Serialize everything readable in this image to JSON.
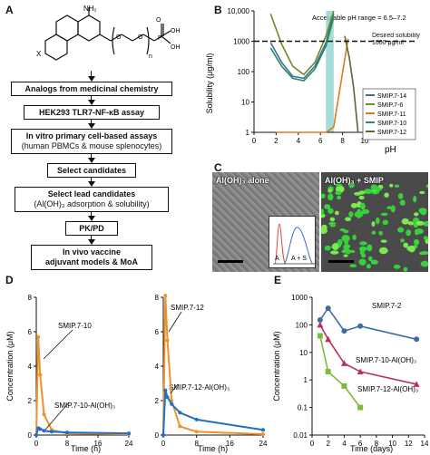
{
  "panels": {
    "A": {
      "letter": "A",
      "structure": {
        "sub_nh2": "NH₂",
        "sub_x": "X",
        "sub_n": "n",
        "sub_p": "P",
        "sub_oh1": "OH",
        "sub_oh2": "OH",
        "sub_o1": "O",
        "sub_o2": "O",
        "sub_o3": "O"
      },
      "steps": [
        {
          "line1": "Analogs from medicinal chemistry",
          "line2": ""
        },
        {
          "line1": "HEK293 TLR7-NF-κB assay",
          "line2": ""
        },
        {
          "line1": "In vitro primary cell-based assays",
          "line2": "(human PBMCs & mouse splenocytes)"
        },
        {
          "line1": "Select candidates",
          "line2": ""
        },
        {
          "line1": "Select lead candidates",
          "line2": "(Al(OH)₃ adsorption & solubility)"
        },
        {
          "line1": "PK/PD",
          "line2": ""
        },
        {
          "line1": "In vivo vaccine",
          "line2": "adjuvant models & MoA"
        }
      ]
    },
    "B": {
      "letter": "B",
      "ylabel": "Solubility (μg/ml)",
      "xlabel": "pH",
      "annotation": "Acceptable pH range = 6.5–7.2",
      "desired_label": "Desired solubility 1000 μg/ml",
      "yticks": [
        "10,000",
        "1000",
        "100",
        "10",
        "1"
      ],
      "xticks": [
        "0",
        "2",
        "4",
        "6",
        "8",
        "10"
      ],
      "legend": [
        {
          "label": "SMIP.7-14",
          "color": "#3a6ea5"
        },
        {
          "label": "SMIP.7-6",
          "color": "#6b8e23"
        },
        {
          "label": "SMIP.7-11",
          "color": "#e07b1a"
        },
        {
          "label": "SMIP.7-10",
          "color": "#2e8b57"
        },
        {
          "label": "SMIP.7-12",
          "color": "#556b2f"
        }
      ]
    },
    "C": {
      "letter": "C",
      "left_label": "Al(OH)₃ alone",
      "right_label": "Al(OH)₃ + SMIP",
      "inset_a": "A",
      "inset_as": "A + S"
    },
    "D": {
      "letter": "D",
      "ylabel": "Concentration (μM)",
      "xlabel": "Time (h)",
      "left": {
        "yticks": [
          "8",
          "6",
          "4",
          "2",
          "0"
        ],
        "xticks": [
          "0",
          "8",
          "16",
          "24"
        ],
        "label_free": "SMIP.7-10",
        "label_adsorbed": "SMIP.7-10-Al(OH)₃"
      },
      "right": {
        "yticks": [
          "8",
          "6",
          "4",
          "2",
          "0"
        ],
        "xticks": [
          "0",
          "8",
          "16",
          "24"
        ],
        "label_free": "SMIP.7-12",
        "label_adsorbed": "SMIP.7-12-Al(OH)₃"
      }
    },
    "E": {
      "letter": "E",
      "ylabel": "Concentration (μM)",
      "xlabel": "Time (days)",
      "yticks": [
        "1000",
        "100",
        "10",
        "1",
        "0.1",
        "0.01"
      ],
      "xticks": [
        "0",
        "2",
        "4",
        "6",
        "8",
        "10",
        "12",
        "14"
      ],
      "labels": [
        "SMIP.7-2",
        "SMIP.7-10-Al(OH)₃",
        "SMIP.7-12-Al(OH)₃"
      ]
    }
  },
  "chart_data": [
    {
      "type": "line",
      "panel": "B",
      "xlabel": "pH",
      "ylabel": "Solubility (μg/ml)",
      "xlim": [
        0,
        10
      ],
      "ylim": [
        1,
        10000
      ],
      "yscale": "log",
      "reference_line": 1000,
      "highlight_range": [
        6.5,
        7.2
      ],
      "series": [
        {
          "name": "SMIP.7-14",
          "color": "#3a6ea5",
          "x": [
            1.5,
            2.5,
            3.5,
            4.5,
            5.5,
            6.5,
            7.2
          ],
          "y": [
            900,
            200,
            70,
            60,
            150,
            900,
            8000
          ]
        },
        {
          "name": "SMIP.7-6",
          "color": "#6b8e23",
          "x": [
            1.5,
            2.5,
            3.5,
            4.5,
            5.5,
            6.5,
            7.2
          ],
          "y": [
            8000,
            800,
            150,
            80,
            200,
            1500,
            10000
          ]
        },
        {
          "name": "SMIP.7-11",
          "color": "#e07b1a",
          "x": [
            2.0,
            3.0,
            4.0,
            5.0,
            6.0,
            6.5,
            7.2,
            8.5
          ],
          "y": [
            1,
            1,
            1,
            1,
            1,
            1,
            1.5,
            1200
          ]
        },
        {
          "name": "SMIP.7-10",
          "color": "#2e8b57",
          "x": [
            1.5,
            2.5,
            3.5,
            4.5,
            5.5,
            6.5,
            7.2
          ],
          "y": [
            600,
            150,
            60,
            50,
            120,
            700,
            6000
          ]
        },
        {
          "name": "SMIP.7-12",
          "color": "#556b2f",
          "x": [
            8.2,
            8.6,
            9.0,
            9.4
          ],
          "y": [
            1500,
            300,
            30,
            1
          ]
        }
      ]
    },
    {
      "type": "line",
      "panel": "D-left",
      "xlabel": "Time (h)",
      "ylabel": "Concentration (μM)",
      "xlim": [
        0,
        24
      ],
      "ylim": [
        0,
        8
      ],
      "series": [
        {
          "name": "SMIP.7-10",
          "color": "#f0922b",
          "x": [
            0,
            0.5,
            1,
            2,
            4,
            8,
            24
          ],
          "y": [
            0,
            5.7,
            3.5,
            1.2,
            0.3,
            0.1,
            0.05
          ]
        },
        {
          "name": "SMIP.7-10-Al(OH)₃",
          "color": "#1f6fc5",
          "x": [
            0,
            0.5,
            1,
            2,
            4,
            8,
            24
          ],
          "y": [
            0,
            0.4,
            0.35,
            0.25,
            0.2,
            0.15,
            0.1
          ]
        }
      ]
    },
    {
      "type": "line",
      "panel": "D-right",
      "xlabel": "Time (h)",
      "ylabel": "Concentration (μM)",
      "xlim": [
        0,
        24
      ],
      "ylim": [
        0,
        8
      ],
      "series": [
        {
          "name": "SMIP.7-12",
          "color": "#f0922b",
          "x": [
            0,
            0.5,
            1,
            2,
            4,
            8,
            24
          ],
          "y": [
            0,
            8.1,
            5.5,
            2.0,
            0.5,
            0.2,
            0.05
          ]
        },
        {
          "name": "SMIP.7-12-Al(OH)₃",
          "color": "#1f6fc5",
          "x": [
            0,
            0.5,
            1,
            2,
            4,
            8,
            24
          ],
          "y": [
            0,
            2.6,
            2.2,
            1.8,
            1.3,
            0.9,
            0.3
          ]
        }
      ]
    },
    {
      "type": "line",
      "panel": "E",
      "xlabel": "Time (days)",
      "ylabel": "Concentration (μM)",
      "xlim": [
        0,
        14
      ],
      "ylim": [
        0.01,
        1000
      ],
      "yscale": "log",
      "series": [
        {
          "name": "SMIP.7-2",
          "color": "#3a6ea5",
          "x": [
            1,
            2,
            4,
            6,
            13
          ],
          "y": [
            150,
            400,
            60,
            90,
            30
          ]
        },
        {
          "name": "SMIP.7-10-Al(OH)₃",
          "color": "#b8325a",
          "x": [
            1,
            2,
            4,
            6,
            13
          ],
          "y": [
            100,
            30,
            4,
            2,
            0.7
          ]
        },
        {
          "name": "SMIP.7-12-Al(OH)₃",
          "color": "#7cba3c",
          "x": [
            1,
            2,
            4,
            6
          ],
          "y": [
            40,
            2,
            0.6,
            0.1
          ]
        }
      ]
    }
  ]
}
